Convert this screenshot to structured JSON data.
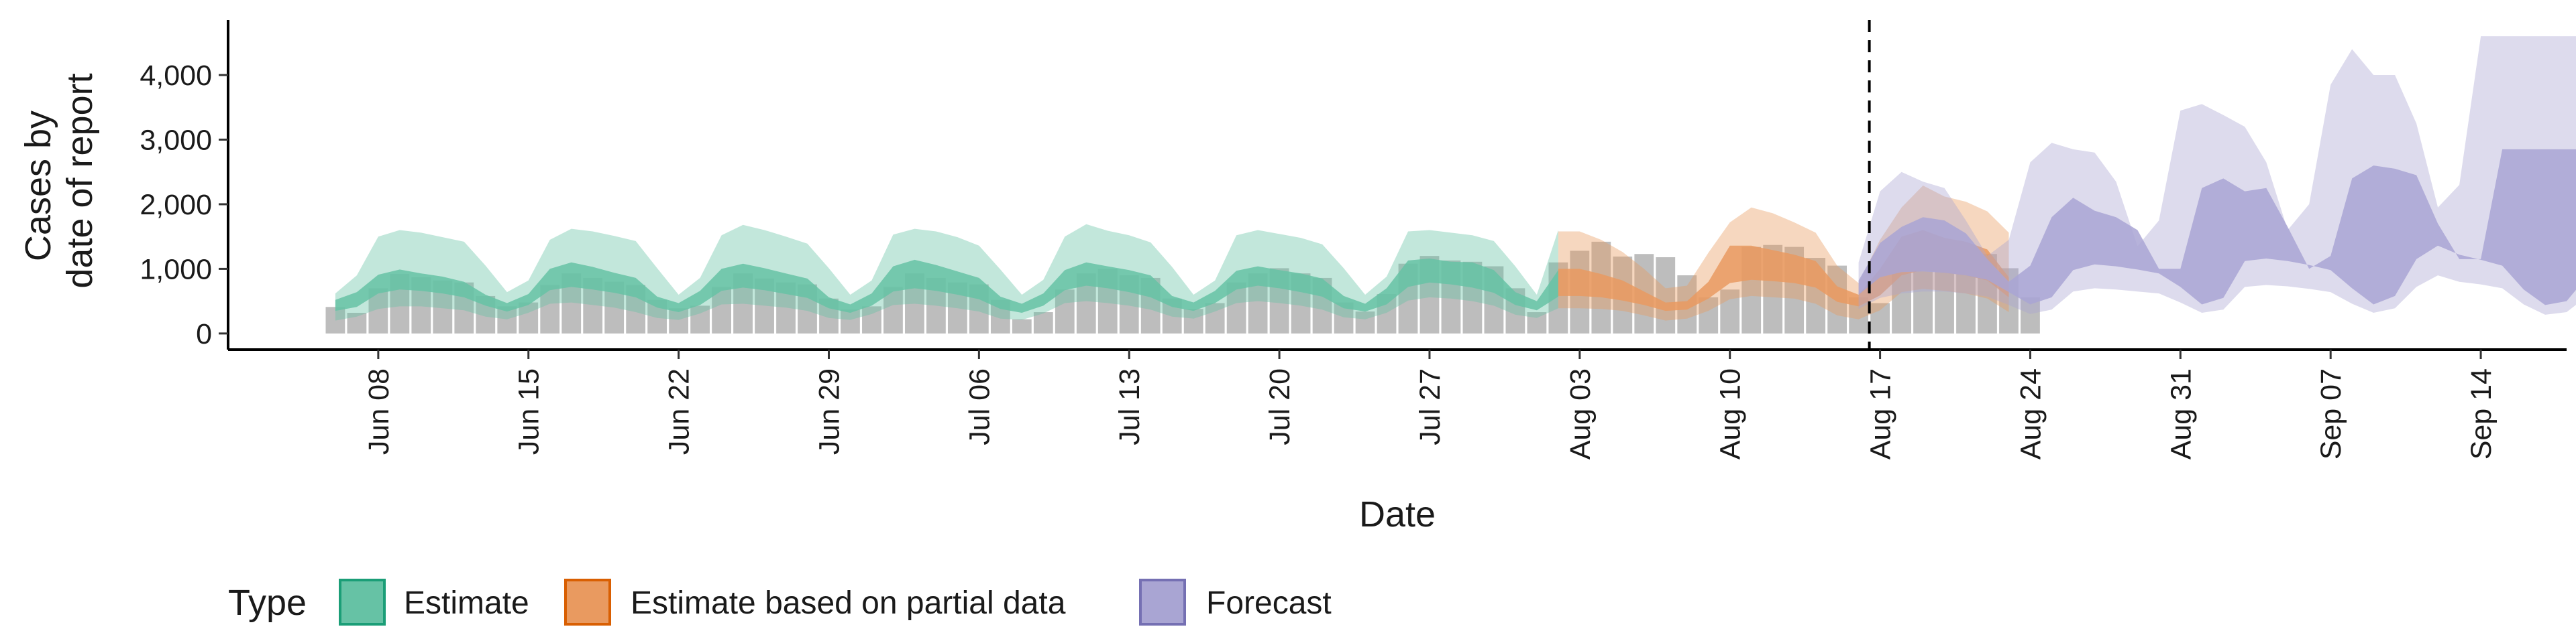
{
  "chart_data": {
    "type": "area",
    "xlabel": "Date",
    "ylabel": [
      "Cases by",
      "date of report"
    ],
    "ylim": [
      -250,
      4850
    ],
    "xlim": [
      "2020-06-01",
      "2020-09-18"
    ],
    "yticks": [
      0,
      1000,
      2000,
      3000,
      4000
    ],
    "ytick_labels": [
      "0",
      "1,000",
      "2,000",
      "3,000",
      "4,000"
    ],
    "xtick_dates": [
      "2020-06-08",
      "2020-06-15",
      "2020-06-22",
      "2020-06-29",
      "2020-07-06",
      "2020-07-13",
      "2020-07-20",
      "2020-07-27",
      "2020-08-03",
      "2020-08-10",
      "2020-08-17",
      "2020-08-24",
      "2020-08-31",
      "2020-09-07",
      "2020-09-14"
    ],
    "xtick_labels": [
      "Jun 08",
      "Jun 15",
      "Jun 22",
      "Jun 29",
      "Jul 06",
      "Jul 13",
      "Jul 20",
      "Jul 27",
      "Aug 03",
      "Aug 10",
      "Aug 17",
      "Aug 24",
      "Aug 31",
      "Sep 07",
      "Sep 14"
    ],
    "forecast_start_date": "2020-08-16",
    "grid": false,
    "legend": {
      "position": "bottom",
      "title": "Type",
      "entries": [
        {
          "label": "Estimate",
          "fill": "#66c2a5",
          "stroke": "#1b9e77"
        },
        {
          "label": "Estimate based on partial data",
          "fill": "#e99a60",
          "stroke": "#d95f02"
        },
        {
          "label": "Forecast",
          "fill": "#a9a5d3",
          "stroke": "#7570b3"
        }
      ]
    },
    "observed_start_date": "2020-06-06",
    "observed_cases": [
      410,
      320,
      700,
      920,
      870,
      820,
      790,
      580,
      420,
      480,
      750,
      930,
      860,
      800,
      750,
      520,
      390,
      430,
      720,
      930,
      850,
      790,
      760,
      540,
      370,
      420,
      720,
      930,
      860,
      790,
      760,
      520,
      220,
      330,
      680,
      930,
      1000,
      900,
      860,
      540,
      380,
      470,
      790,
      930,
      1010,
      930,
      860,
      480,
      340,
      610,
      1080,
      1200,
      1130,
      1110,
      1040,
      700,
      330,
      1100,
      1280,
      1420,
      1190,
      1230,
      1180,
      900,
      560,
      680,
      1340,
      1370,
      1340,
      1170,
      1050,
      560,
      470,
      950,
      1250,
      1450,
      1260,
      1230,
      1010,
      560
    ],
    "series": [
      {
        "name": "Estimate",
        "start_date": "2020-06-06",
        "color": "#66c2a5",
        "outer_low": [
          200,
          260,
          380,
          420,
          420,
          390,
          360,
          260,
          220,
          320,
          460,
          480,
          440,
          400,
          330,
          240,
          210,
          310,
          450,
          460,
          430,
          400,
          350,
          240,
          210,
          300,
          440,
          460,
          430,
          390,
          340,
          230,
          210,
          310,
          470,
          500,
          470,
          430,
          370,
          260,
          230,
          340,
          470,
          500,
          470,
          430,
          370,
          250,
          220,
          320,
          510,
          560,
          540,
          500,
          430,
          290,
          240,
          390
        ],
        "outer_high": [
          620,
          900,
          1500,
          1600,
          1560,
          1490,
          1420,
          1050,
          640,
          820,
          1450,
          1620,
          1580,
          1510,
          1430,
          1010,
          600,
          860,
          1520,
          1680,
          1600,
          1500,
          1390,
          1010,
          600,
          820,
          1530,
          1620,
          1580,
          1490,
          1360,
          990,
          600,
          830,
          1500,
          1690,
          1590,
          1520,
          1410,
          1030,
          600,
          820,
          1520,
          1600,
          1540,
          1480,
          1380,
          1010,
          600,
          880,
          1580,
          1600,
          1560,
          1520,
          1430,
          1040,
          600,
          1600
        ],
        "inner_low": [
          350,
          410,
          620,
          680,
          660,
          620,
          560,
          430,
          340,
          440,
          670,
          720,
          680,
          630,
          560,
          400,
          330,
          440,
          660,
          710,
          670,
          610,
          550,
          390,
          320,
          430,
          650,
          700,
          660,
          600,
          530,
          380,
          320,
          430,
          670,
          740,
          700,
          640,
          560,
          410,
          350,
          470,
          680,
          740,
          700,
          640,
          570,
          390,
          340,
          450,
          720,
          790,
          760,
          710,
          630,
          440,
          360,
          570
        ],
        "inner_high": [
          520,
          640,
          910,
          990,
          930,
          880,
          800,
          600,
          470,
          610,
          1000,
          1100,
          1030,
          940,
          860,
          570,
          470,
          660,
          1000,
          1080,
          1010,
          930,
          850,
          560,
          450,
          620,
          1040,
          1140,
          1060,
          960,
          860,
          570,
          460,
          620,
          980,
          1100,
          1040,
          980,
          900,
          580,
          480,
          660,
          970,
          1040,
          980,
          930,
          850,
          580,
          460,
          700,
          1130,
          1160,
          1110,
          1100,
          980,
          640,
          500,
          980
        ]
      },
      {
        "name": "Estimate based on partial data",
        "start_date": "2020-08-02",
        "color": "#e99a60",
        "outer_low": [
          390,
          390,
          380,
          350,
          280,
          200,
          230,
          350,
          530,
          580,
          560,
          540,
          460,
          280,
          220,
          360,
          640,
          690,
          660,
          620,
          540,
          330
        ],
        "outer_high": [
          1580,
          1580,
          1450,
          1260,
          1000,
          700,
          740,
          1250,
          1720,
          1950,
          1860,
          1720,
          1560,
          1050,
          780,
          1450,
          1950,
          2290,
          2120,
          2040,
          1890,
          1560
        ],
        "inner_low": [
          580,
          580,
          560,
          510,
          440,
          350,
          370,
          540,
          780,
          830,
          810,
          780,
          710,
          490,
          420,
          590,
          900,
          980,
          940,
          900,
          820,
          560
        ],
        "inner_high": [
          1000,
          1000,
          920,
          820,
          650,
          480,
          500,
          800,
          1360,
          1360,
          1290,
          1220,
          1120,
          730,
          600,
          1000,
          1500,
          1600,
          1480,
          1420,
          1300,
          870
        ]
      },
      {
        "name": "Forecast",
        "start_date": "2020-08-16",
        "color": "#a9a5d3",
        "outer_low": [
          380,
          550,
          620,
          650,
          650,
          620,
          570,
          440,
          300,
          370,
          650,
          700,
          680,
          650,
          620,
          480,
          320,
          370,
          720,
          750,
          730,
          690,
          640,
          460,
          320,
          390,
          720,
          900,
          800,
          760,
          700,
          450,
          290,
          330,
          590
        ],
        "outer_high": [
          1100,
          2200,
          2500,
          2350,
          2250,
          1750,
          1200,
          1450,
          2650,
          2950,
          2850,
          2800,
          2350,
          1350,
          1750,
          3450,
          3550,
          3380,
          3200,
          2650,
          1600,
          2000,
          3850,
          4400,
          4000,
          4000,
          3250,
          1950,
          2300,
          4600,
          4600,
          4600,
          4600,
          4600,
          4600
        ],
        "inner_low": [
          600,
          870,
          950,
          960,
          940,
          900,
          830,
          640,
          450,
          560,
          980,
          1070,
          1040,
          990,
          930,
          720,
          450,
          550,
          1120,
          1160,
          1120,
          1060,
          980,
          700,
          450,
          580,
          1150,
          1360,
          1220,
          1140,
          1050,
          680,
          440,
          500,
          900
        ],
        "inner_high": [
          820,
          1400,
          1650,
          1800,
          1750,
          1550,
          1150,
          800,
          1050,
          1800,
          2100,
          1900,
          1800,
          1600,
          1000,
          1000,
          2250,
          2400,
          2200,
          2250,
          1650,
          1000,
          1200,
          2400,
          2600,
          2550,
          2450,
          1700,
          1150,
          1150,
          2850,
          2850,
          2850,
          2850,
          2850
        ]
      }
    ]
  }
}
